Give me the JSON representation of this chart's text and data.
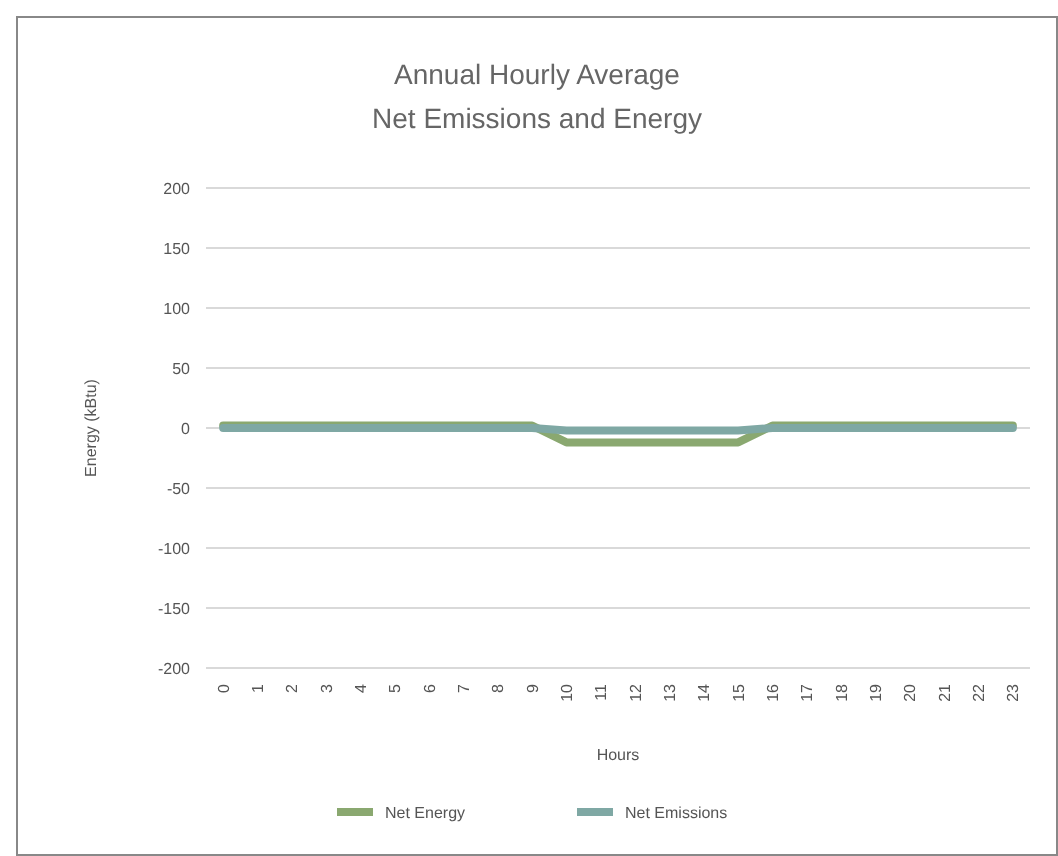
{
  "chart_data": {
    "type": "line",
    "title": "Annual Hourly Average\nNet Emissions and Energy",
    "xlabel": "Hours",
    "ylabel": "Energy (kBtu)",
    "categories": [
      "0",
      "1",
      "2",
      "3",
      "4",
      "5",
      "6",
      "7",
      "8",
      "9",
      "10",
      "11",
      "12",
      "13",
      "14",
      "15",
      "16",
      "17",
      "18",
      "19",
      "20",
      "21",
      "22",
      "23"
    ],
    "series": [
      {
        "name": "Net Energy",
        "color": "#8aa870",
        "values": [
          2,
          2,
          2,
          2,
          2,
          2,
          2,
          2,
          2,
          2,
          -12,
          -12,
          -12,
          -12,
          -12,
          -12,
          2,
          2,
          2,
          2,
          2,
          2,
          2,
          2
        ]
      },
      {
        "name": "Net Emissions",
        "color": "#7fa8a4",
        "values": [
          0,
          0,
          0,
          0,
          0,
          0,
          0,
          0,
          0,
          0,
          -2,
          -2,
          -2,
          -2,
          -2,
          -2,
          0,
          0,
          0,
          0,
          0,
          0,
          0,
          0
        ]
      }
    ],
    "ylim": [
      -200,
      200
    ],
    "yticks": [
      -200,
      -150,
      -100,
      -50,
      0,
      50,
      100,
      150,
      200
    ],
    "grid": "y",
    "legend": "bottom",
    "marker": "none",
    "line_style": "solid"
  }
}
